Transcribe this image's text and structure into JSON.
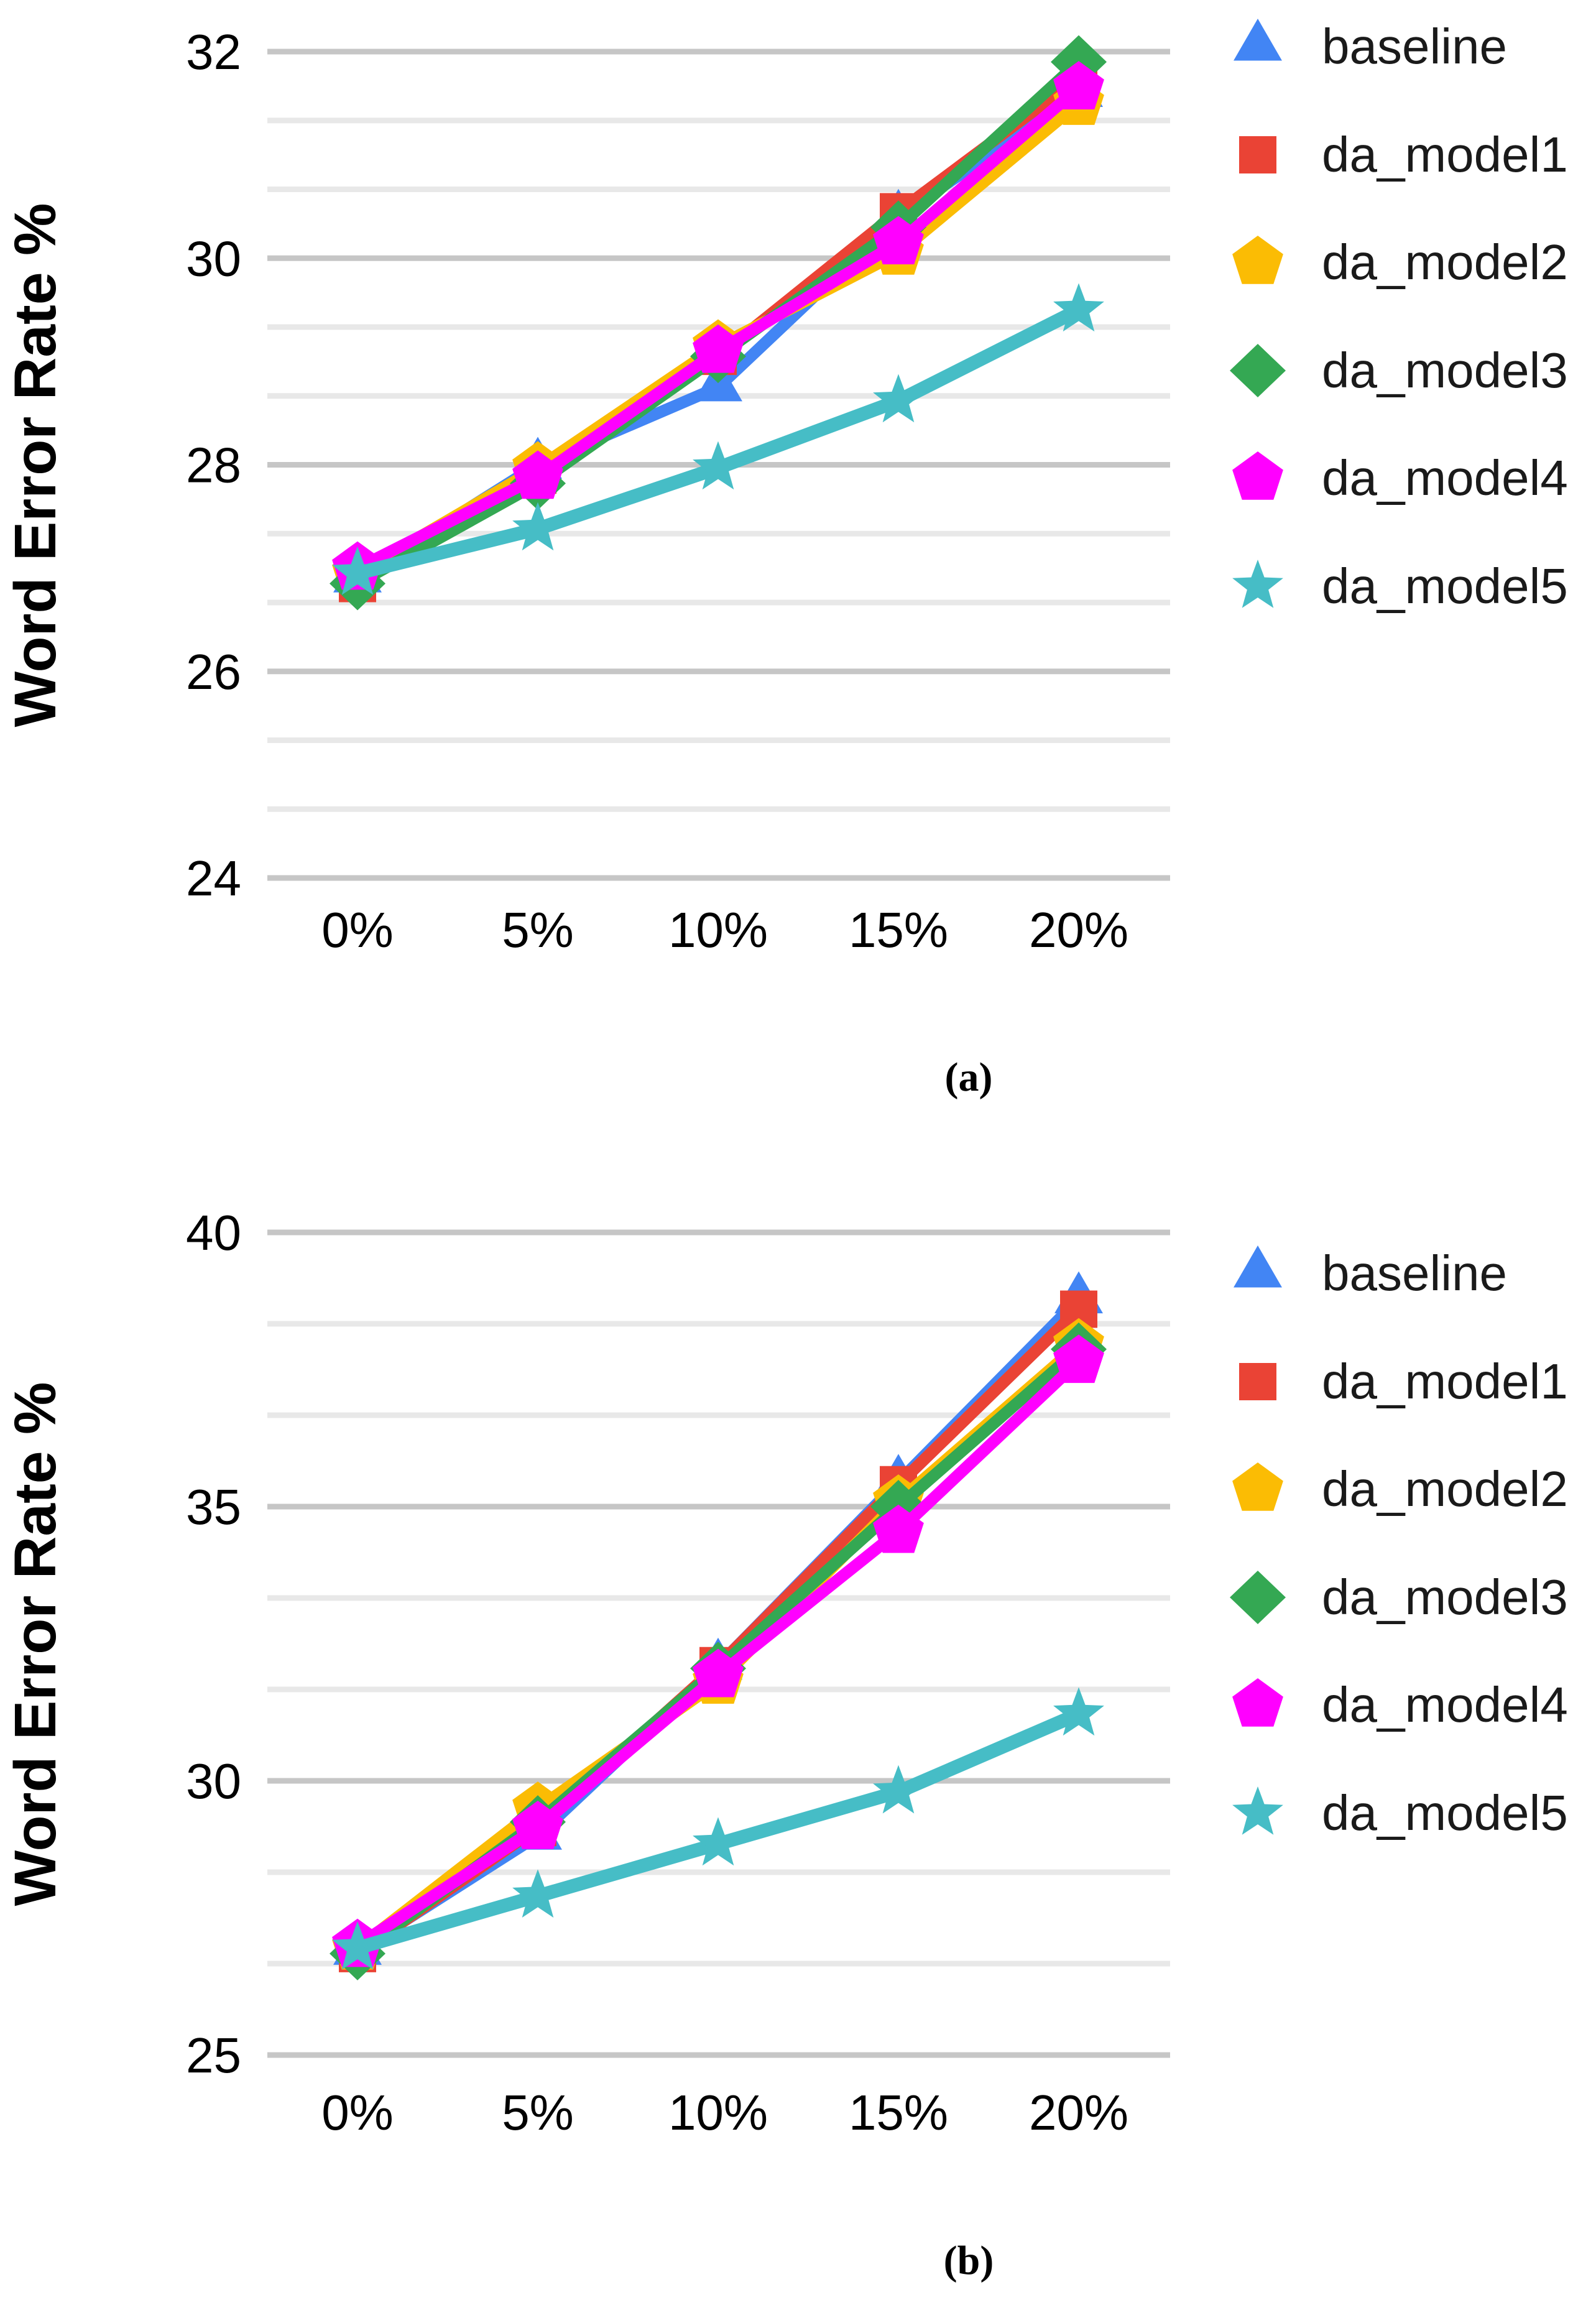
{
  "figure": {
    "captions": {
      "a": "(a)",
      "b": "(b)"
    }
  },
  "legend": {
    "position": "right",
    "entries": [
      {
        "label": "baseline",
        "marker": "triangle",
        "color": "#4285F4"
      },
      {
        "label": "da_model1",
        "marker": "square",
        "color": "#EA4335"
      },
      {
        "label": "da_model2",
        "marker": "pentagon",
        "color": "#FBBC04"
      },
      {
        "label": "da_model3",
        "marker": "diamond",
        "color": "#34A853"
      },
      {
        "label": "da_model4",
        "marker": "pentagon",
        "color": "#FF00FF"
      },
      {
        "label": "da_model5",
        "marker": "star",
        "color": "#46BDC6"
      }
    ]
  },
  "colors": {
    "major_gridline": "#c6c6c6",
    "minor_gridline": "#e8e8e8",
    "text": "#000000"
  },
  "chart_data": [
    {
      "id": "a",
      "type": "line",
      "title": "",
      "xlabel": "",
      "ylabel": "Word Error Rate %",
      "categories": [
        "0%",
        "5%",
        "10%",
        "15%",
        "20%"
      ],
      "ylim": [
        24,
        32
      ],
      "yticks": [
        32,
        30,
        28,
        26,
        24
      ],
      "minor_divisions_per_major": 3,
      "grid": true,
      "legend_position": "right",
      "series": [
        {
          "name": "baseline",
          "marker": "triangle",
          "color": "#4285F4",
          "values": [
            26.9,
            28.0,
            28.75,
            30.4,
            31.6
          ]
        },
        {
          "name": "da_model1",
          "marker": "square",
          "color": "#EA4335",
          "values": [
            26.85,
            27.9,
            29.05,
            30.45,
            31.75
          ]
        },
        {
          "name": "da_model2",
          "marker": "pentagon",
          "color": "#FBBC04",
          "values": [
            26.95,
            27.97,
            29.15,
            30.05,
            31.5
          ]
        },
        {
          "name": "da_model3",
          "marker": "diamond",
          "color": "#34A853",
          "values": [
            26.85,
            27.82,
            29.05,
            30.3,
            31.9
          ]
        },
        {
          "name": "da_model4",
          "marker": "pentagon",
          "color": "#FF00FF",
          "values": [
            27.0,
            27.88,
            29.1,
            30.15,
            31.65
          ]
        },
        {
          "name": "da_model5",
          "marker": "star",
          "color": "#46BDC6",
          "values": [
            26.95,
            27.38,
            27.97,
            28.62,
            29.5
          ]
        }
      ]
    },
    {
      "id": "b",
      "type": "line",
      "title": "",
      "xlabel": "",
      "ylabel": "Word Error Rate %",
      "categories": [
        "0%",
        "5%",
        "10%",
        "15%",
        "20%"
      ],
      "ylim": [
        25,
        40
      ],
      "yticks": [
        40,
        35,
        30,
        25
      ],
      "minor_divisions_per_major": 3,
      "grid": true,
      "legend_position": "right",
      "series": [
        {
          "name": "baseline",
          "marker": "triangle",
          "color": "#4285F4",
          "values": [
            26.9,
            29.0,
            32.1,
            35.45,
            38.78
          ]
        },
        {
          "name": "da_model1",
          "marker": "square",
          "color": "#EA4335",
          "values": [
            26.85,
            29.15,
            32.1,
            35.4,
            38.6
          ]
        },
        {
          "name": "da_model2",
          "marker": "pentagon",
          "color": "#FBBC04",
          "values": [
            26.95,
            29.5,
            31.8,
            35.1,
            37.95
          ]
        },
        {
          "name": "da_model3",
          "marker": "diamond",
          "color": "#34A853",
          "values": [
            26.85,
            29.25,
            32.05,
            35.0,
            37.87
          ]
        },
        {
          "name": "da_model4",
          "marker": "pentagon",
          "color": "#FF00FF",
          "values": [
            27.0,
            29.15,
            31.92,
            34.55,
            37.65
          ]
        },
        {
          "name": "da_model5",
          "marker": "star",
          "color": "#46BDC6",
          "values": [
            26.95,
            27.9,
            28.85,
            29.8,
            31.22
          ]
        }
      ]
    }
  ]
}
